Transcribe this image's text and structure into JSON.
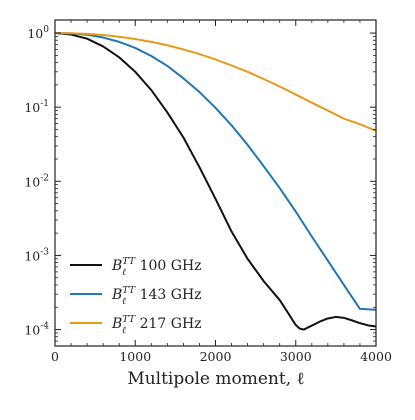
{
  "chart_data": {
    "type": "line",
    "title": "",
    "xlabel": "Multipole moment, ℓ",
    "ylabel": "",
    "xlim": [
      0,
      4000
    ],
    "ylim": [
      6e-05,
      1.5
    ],
    "yscale": "log",
    "grid": false,
    "legend": "bottom-left",
    "x_ticks": [
      {
        "value": 0,
        "label": "0"
      },
      {
        "value": 1000,
        "label": "1000"
      },
      {
        "value": 2000,
        "label": "2000"
      },
      {
        "value": 3000,
        "label": "3000"
      },
      {
        "value": 4000,
        "label": "4000"
      }
    ],
    "y_ticks": [
      {
        "value": 1,
        "base": "10",
        "exp": "0"
      },
      {
        "value": 0.1,
        "base": "10",
        "exp": "-1"
      },
      {
        "value": 0.01,
        "base": "10",
        "exp": "-2"
      },
      {
        "value": 0.001,
        "base": "10",
        "exp": "-3"
      },
      {
        "value": 0.0001,
        "base": "10",
        "exp": "-4"
      }
    ],
    "series": [
      {
        "name": "100 GHz",
        "label_symbol": "B",
        "label_sub": "ℓ",
        "label_sup": "TT",
        "label_rest": " 100 GHz",
        "color": "#111111",
        "x": [
          0,
          200,
          400,
          600,
          800,
          1000,
          1200,
          1400,
          1600,
          1800,
          2000,
          2200,
          2400,
          2600,
          2800,
          2900,
          3000,
          3050,
          3100,
          3200,
          3300,
          3400,
          3500,
          3600,
          3700,
          3800,
          3900,
          4000
        ],
        "y": [
          1.0,
          0.955,
          0.84,
          0.66,
          0.47,
          0.3,
          0.17,
          0.085,
          0.039,
          0.0155,
          0.0058,
          0.0021,
          0.0009,
          0.00045,
          0.00025,
          0.00017,
          0.000115,
          0.000103,
          0.0001,
          0.000113,
          0.000128,
          0.000141,
          0.000148,
          0.000144,
          0.000133,
          0.000122,
          0.000114,
          0.00011
        ]
      },
      {
        "name": "143 GHz",
        "label_symbol": "B",
        "label_sub": "ℓ",
        "label_sup": "TT",
        "label_rest": " 143 GHz",
        "color": "#1f77b4",
        "x": [
          0,
          200,
          400,
          600,
          800,
          1000,
          1200,
          1400,
          1600,
          1800,
          2000,
          2200,
          2400,
          2600,
          2800,
          3000,
          3200,
          3400,
          3600,
          3800,
          4000
        ],
        "y": [
          1.0,
          0.99,
          0.95,
          0.87,
          0.76,
          0.63,
          0.49,
          0.36,
          0.245,
          0.16,
          0.098,
          0.057,
          0.031,
          0.016,
          0.0081,
          0.0039,
          0.0018,
          0.00085,
          0.0004,
          0.00019,
          0.000185
        ]
      },
      {
        "name": "217 GHz",
        "label_symbol": "B",
        "label_sub": "ℓ",
        "label_sup": "TT",
        "label_rest": " 217 GHz",
        "color": "#e69a1c",
        "x": [
          0,
          200,
          400,
          600,
          800,
          1000,
          1200,
          1400,
          1600,
          1800,
          2000,
          2200,
          2400,
          2600,
          2800,
          3000,
          3200,
          3400,
          3600,
          3800,
          4000
        ],
        "y": [
          1.0,
          0.995,
          0.975,
          0.94,
          0.89,
          0.83,
          0.76,
          0.685,
          0.6,
          0.52,
          0.44,
          0.365,
          0.3,
          0.24,
          0.19,
          0.148,
          0.115,
          0.09,
          0.07,
          0.059,
          0.048
        ]
      }
    ]
  }
}
